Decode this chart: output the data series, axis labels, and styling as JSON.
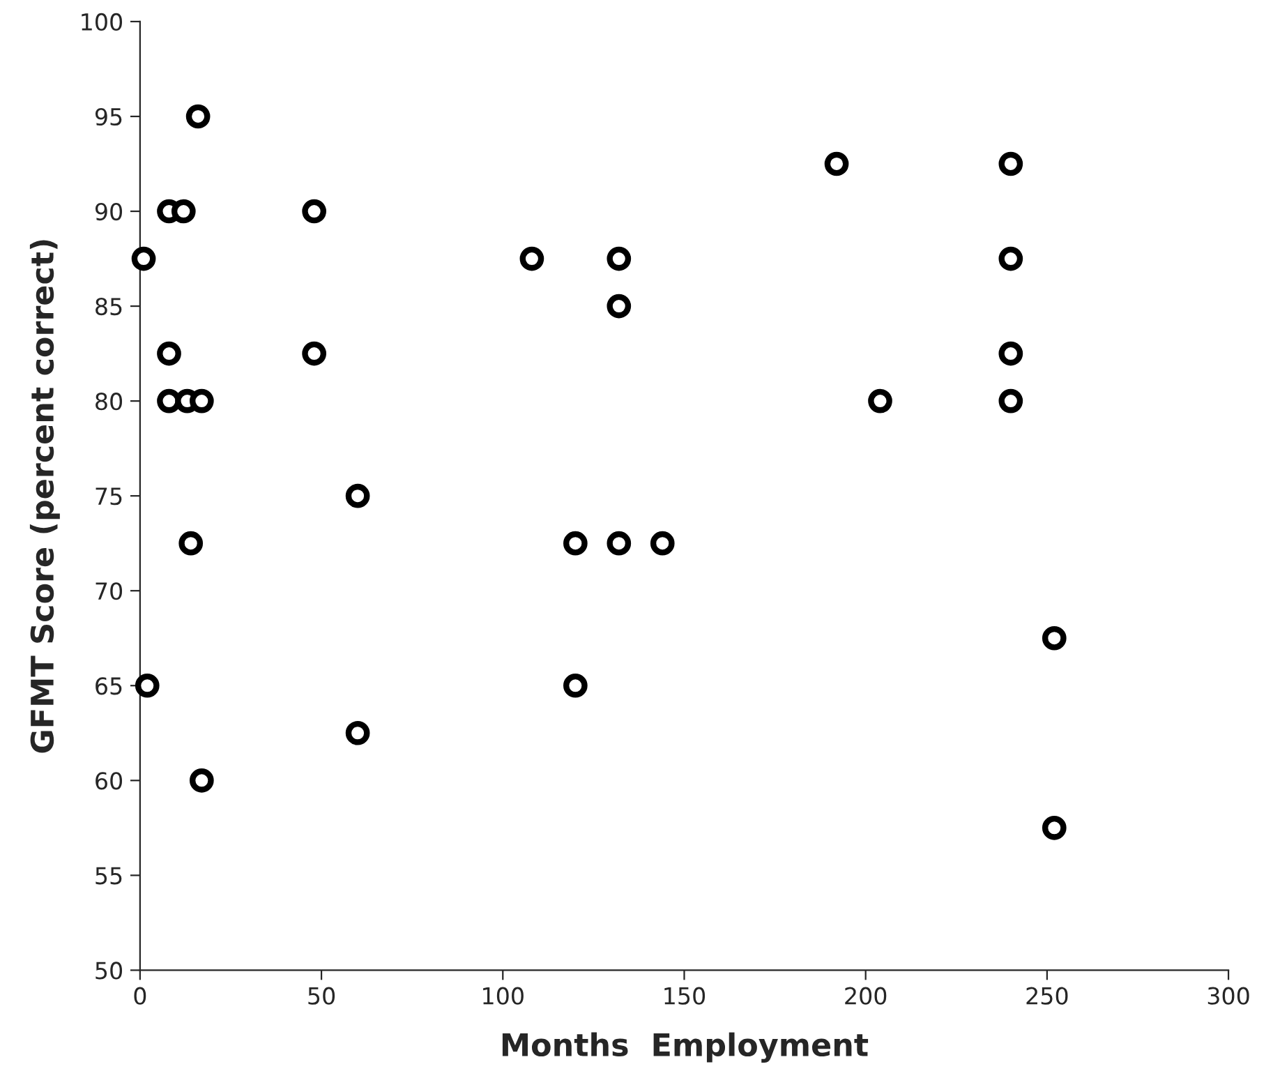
{
  "chart_data": {
    "type": "scatter",
    "xlabel": "Months  Employment",
    "ylabel": "GFMT Score (percent correct)",
    "x": [
      1,
      8,
      12,
      16,
      8,
      8,
      13,
      17,
      14,
      2,
      17,
      48,
      48,
      60,
      60,
      108,
      120,
      120,
      132,
      132,
      132,
      144,
      192,
      204,
      240,
      240,
      240,
      240,
      252,
      252
    ],
    "values": [
      87.5,
      90,
      90,
      95,
      82.5,
      80,
      80,
      80,
      72.5,
      65,
      60,
      90,
      82.5,
      75,
      62.5,
      87.5,
      72.5,
      65,
      87.5,
      85,
      72.5,
      72.5,
      92.5,
      80,
      92.5,
      87.5,
      82.5,
      80,
      67.5,
      57.5
    ],
    "color": "#000000",
    "marker": "circle",
    "xlim": [
      0,
      300
    ],
    "xticks": [
      0,
      50,
      100,
      150,
      200,
      250,
      300
    ],
    "ylim": [
      50,
      100
    ],
    "yticks": [
      50,
      55,
      60,
      65,
      70,
      75,
      80,
      85,
      90,
      95,
      100
    ],
    "grid": false,
    "legend": false
  }
}
